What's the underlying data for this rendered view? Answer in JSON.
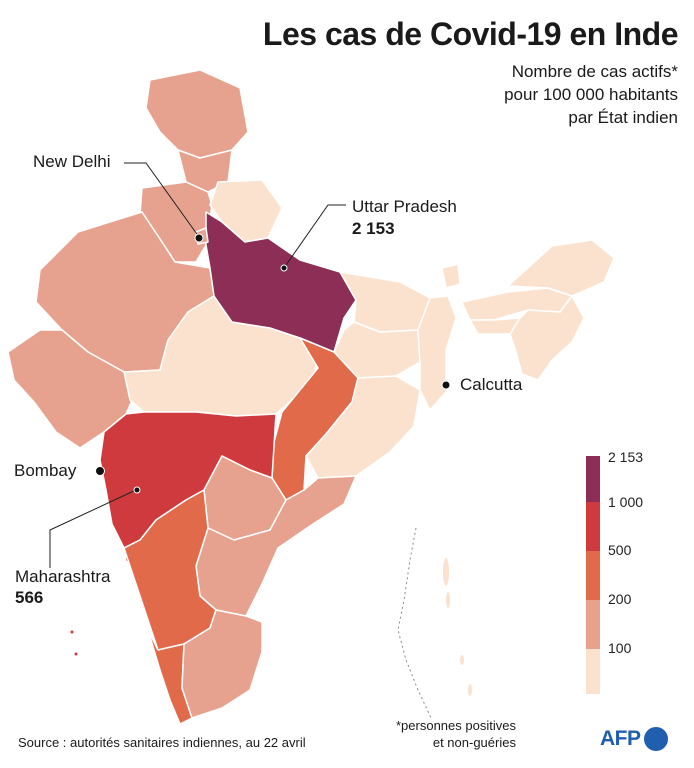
{
  "title": "Les cas de Covid-19 en Inde",
  "subtitle": [
    "Nombre de cas actifs*",
    "pour 100 000 habitants",
    "par État indien"
  ],
  "colors": {
    "level_0_100": "#fbe2cf",
    "level_100_200": "#e7a28f",
    "level_200_500": "#e06a4a",
    "level_500_1000": "#cf3a3e",
    "level_1000_2153": "#8c2e55",
    "borders": "#ffffff",
    "brand": "#1f5fae"
  },
  "regions": {
    "uttar_pradesh": "2 153",
    "maharashtra": "566"
  },
  "labels": {
    "new_delhi": "New Delhi",
    "uttar_pradesh": "Uttar Pradesh",
    "uttar_pradesh_value": "2 153",
    "calcutta": "Calcutta",
    "bombay": "Bombay",
    "maharashtra": "Maharashtra",
    "maharashtra_value": "566"
  },
  "legend": {
    "ticks": [
      "2 153",
      "1 000",
      "500",
      "200",
      "100"
    ]
  },
  "footnote": [
    "*personnes positives",
    "et non-guéries"
  ],
  "source": "Source : autorités sanitaires indiennes, au 22 avril",
  "logo": "AFP"
}
